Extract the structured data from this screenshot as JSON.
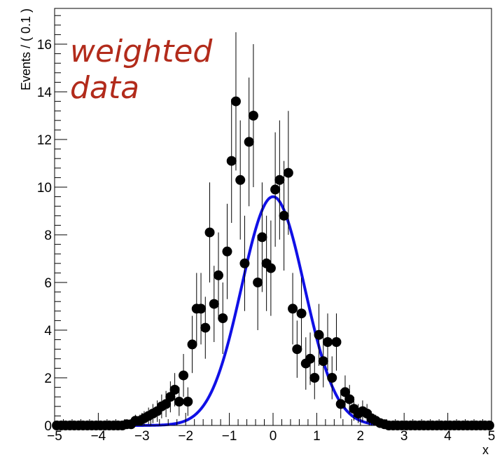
{
  "chart_data": {
    "type": "scatter",
    "title": "",
    "xlabel": "x",
    "ylabel": "Events / ( 0.1 )",
    "xlim": [
      -5,
      5
    ],
    "ylim": [
      0,
      17.5
    ],
    "x_ticks": [
      -5,
      -4,
      -3,
      -2,
      -1,
      0,
      1,
      2,
      3,
      4,
      5
    ],
    "x_tick_labels": [
      "-5",
      "-4",
      "-3",
      "-2",
      "-1",
      "0",
      "1",
      "2",
      "3",
      "4",
      "5"
    ],
    "y_ticks": [
      0,
      2,
      4,
      6,
      8,
      10,
      12,
      14,
      16
    ],
    "y_tick_labels": [
      "0",
      "2",
      "4",
      "6",
      "8",
      "10",
      "12",
      "14",
      "16"
    ],
    "grid": false,
    "annotation": "weighted data",
    "annotation_lines": [
      "weighted",
      "data"
    ],
    "annotation_color": "#b22b1b",
    "fit_color": "#1010e6",
    "marker_color": "#000000",
    "fit_curve": {
      "type": "gaussian",
      "mean": 0.0,
      "sigma": 0.72,
      "peak": 9.6
    },
    "series": [
      {
        "x": [
          -4.95,
          -4.85,
          -4.75,
          -4.65,
          -4.55,
          -4.45,
          -4.35,
          -4.25,
          -4.15,
          -4.05,
          -3.95,
          -3.85,
          -3.75,
          -3.65,
          -3.55,
          -3.45,
          -3.35,
          -3.25,
          -3.15,
          -3.05,
          -2.95,
          -2.85,
          -2.75,
          -2.65,
          -2.55,
          -2.45,
          -2.35,
          -2.25,
          -2.15,
          -2.05,
          -1.95,
          -1.85,
          -1.75,
          -1.65,
          -1.55,
          -1.45,
          -1.35,
          -1.25,
          -1.15,
          -1.05,
          -0.95,
          -0.85,
          -0.75,
          -0.65,
          -0.55,
          -0.45,
          -0.35,
          -0.25,
          -0.15,
          -0.05,
          0.05,
          0.15,
          0.25,
          0.35,
          0.45,
          0.55,
          0.65,
          0.75,
          0.85,
          0.95,
          1.05,
          1.15,
          1.25,
          1.35,
          1.45,
          1.55,
          1.65,
          1.75,
          1.85,
          1.95,
          2.05,
          2.15,
          2.25,
          2.35,
          2.45,
          2.55,
          2.65,
          2.75,
          2.85,
          2.95,
          3.05,
          3.15,
          3.25,
          3.35,
          3.45,
          3.55,
          3.65,
          3.75,
          3.85,
          3.95,
          4.05,
          4.15,
          4.25,
          4.35,
          4.45,
          4.55,
          4.65,
          4.75,
          4.85,
          4.95
        ],
        "y": [
          0.0,
          0.0,
          0.0,
          0.0,
          0.0,
          0.0,
          0.0,
          0.0,
          0.0,
          0.0,
          0.0,
          0.0,
          0.0,
          0.0,
          0.0,
          0.0,
          0.05,
          0.05,
          0.2,
          0.2,
          0.3,
          0.4,
          0.5,
          0.6,
          0.8,
          0.9,
          1.2,
          1.5,
          1.0,
          2.1,
          1.0,
          3.4,
          4.9,
          4.9,
          4.1,
          8.1,
          5.1,
          6.3,
          4.5,
          7.3,
          11.1,
          13.6,
          10.3,
          6.8,
          11.9,
          13.0,
          6.0,
          7.9,
          6.8,
          6.6,
          9.9,
          10.3,
          8.8,
          10.6,
          4.9,
          3.2,
          4.7,
          2.6,
          2.8,
          2.0,
          3.8,
          2.7,
          3.5,
          2.0,
          3.5,
          0.9,
          1.4,
          1.1,
          0.7,
          0.5,
          0.6,
          0.5,
          0.3,
          0.2,
          0.1,
          0.05,
          0.0,
          0.0,
          0.0,
          0.0,
          0.0,
          0.0,
          0.0,
          0.0,
          0.0,
          0.0,
          0.0,
          0.0,
          0.0,
          0.0,
          0.0,
          0.0,
          0.0,
          0.0,
          0.0,
          0.0,
          0.0,
          0.0,
          0.0,
          0.0
        ],
        "yerr": [
          0.0,
          0.0,
          0.0,
          0.0,
          0.0,
          0.0,
          0.0,
          0.0,
          0.0,
          0.0,
          0.0,
          0.0,
          0.0,
          0.0,
          0.0,
          0.0,
          0.1,
          0.1,
          0.25,
          0.25,
          0.3,
          0.35,
          0.4,
          0.45,
          0.5,
          0.55,
          0.65,
          0.7,
          0.6,
          0.9,
          0.6,
          1.2,
          1.5,
          1.5,
          1.3,
          2.1,
          1.6,
          1.8,
          1.5,
          2.0,
          2.6,
          2.9,
          2.5,
          2.0,
          2.7,
          3.0,
          2.0,
          2.3,
          2.0,
          2.0,
          2.4,
          2.5,
          2.3,
          2.6,
          1.5,
          1.2,
          1.5,
          1.1,
          1.1,
          0.9,
          1.3,
          1.1,
          1.2,
          0.9,
          1.2,
          0.6,
          0.7,
          0.6,
          0.5,
          0.4,
          0.45,
          0.4,
          0.3,
          0.25,
          0.15,
          0.1,
          0.0,
          0.0,
          0.0,
          0.0,
          0.0,
          0.0,
          0.0,
          0.0,
          0.0,
          0.0,
          0.0,
          0.0,
          0.0,
          0.0,
          0.0,
          0.0,
          0.0,
          0.0,
          0.0,
          0.0,
          0.0,
          0.0,
          0.0,
          0.0
        ]
      }
    ]
  }
}
